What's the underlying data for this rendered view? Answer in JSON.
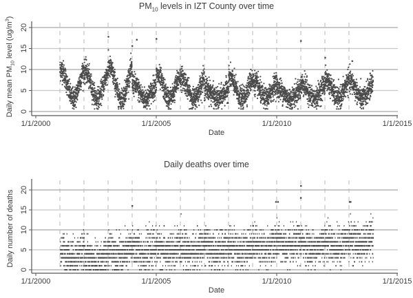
{
  "colors": {
    "gridline": "#c8c8c8",
    "axis": "#555555",
    "points": "#4a4a4a",
    "dashed_year": "#b5b5b5",
    "text": "#3a3a3a"
  },
  "chart_data": [
    {
      "type": "scatter",
      "title": "PM10 levels in IZT County over time",
      "title_parts": {
        "pre": "PM",
        "sub": "10",
        "post": " levels in IZT County over time"
      },
      "xlabel": "Date",
      "ylabel": "Daily mean PM10 level (ug/m3)",
      "ylabel_parts": {
        "pre": "Daily mean PM",
        "sub": "10",
        "mid": " level (ug/m",
        "sup": "3",
        "post": ")"
      },
      "xlim": [
        "1/1/2000",
        "1/1/2015"
      ],
      "ylim": [
        0,
        20
      ],
      "x_ticks": [
        "1/1/2000",
        "1/1/2005",
        "1/1/2010",
        "1/1/2015"
      ],
      "y_ticks": [
        0,
        5,
        10,
        15,
        20
      ],
      "grid": true,
      "dashed_year_lines": [
        2001,
        2002,
        2003,
        2004,
        2005,
        2006,
        2007,
        2008,
        2009,
        2010,
        2011,
        2012,
        2013
      ],
      "data_range": [
        "2001-01-01",
        "2013-12-31"
      ],
      "yearly_winter_peak": {
        "2001": 10,
        "2002": 9.5,
        "2003": 10.5,
        "2004": 6.5,
        "2005": 8.5,
        "2006": 8,
        "2007": 5.5,
        "2008": 8,
        "2009": 7,
        "2010": 5.5,
        "2011": 6.5,
        "2012": 7.5,
        "2013": 7
      },
      "typical_trough": 3,
      "notable_outliers": [
        {
          "date": "2003-01-05",
          "value": 17.8
        },
        {
          "date": "2004-01-02",
          "value": 15.6
        },
        {
          "date": "2004-03-10",
          "value": 17.1
        },
        {
          "date": "2005-01-03",
          "value": 17.3
        },
        {
          "date": "2011-01-02",
          "value": 16.8
        },
        {
          "date": "2012-01-05",
          "value": 12.8
        },
        {
          "date": "2013-02-20",
          "value": 12.0
        }
      ]
    },
    {
      "type": "scatter",
      "title": "Daily deaths over time",
      "xlabel": "Date",
      "ylabel": "Daily number of deaths",
      "xlim": [
        "1/1/2000",
        "1/1/2015"
      ],
      "ylim": [
        0,
        20
      ],
      "x_ticks": [
        "1/1/2000",
        "1/1/2005",
        "1/1/2010",
        "1/1/2015"
      ],
      "y_ticks": [
        0,
        5,
        10,
        15,
        20
      ],
      "grid": true,
      "dashed_year_lines": [
        2001,
        2002,
        2003,
        2004,
        2005,
        2006,
        2007,
        2008,
        2009,
        2010,
        2011,
        2012,
        2013
      ],
      "data_range": [
        "2001-01-01",
        "2013-12-31"
      ],
      "values_are_integers": true,
      "yearly_mean_deaths": {
        "2001": 4,
        "2002": 2.8,
        "2003": 4.5,
        "2004": 5,
        "2005": 5,
        "2006": 5.2,
        "2007": 5.3,
        "2008": 5.5,
        "2009": 6,
        "2010": 6.2,
        "2011": 6,
        "2012": 6.3,
        "2013": 7
      },
      "notable_outliers": [
        {
          "date": "2004-01-02",
          "value": 16
        },
        {
          "date": "2009-12-20",
          "value": 17
        },
        {
          "date": "2010-01-20",
          "value": 17
        },
        {
          "date": "2011-01-03",
          "value": 21
        },
        {
          "date": "2011-01-01",
          "value": 18
        },
        {
          "date": "2013-01-10",
          "value": 17
        },
        {
          "date": "2013-01-25",
          "value": 17
        }
      ]
    }
  ]
}
